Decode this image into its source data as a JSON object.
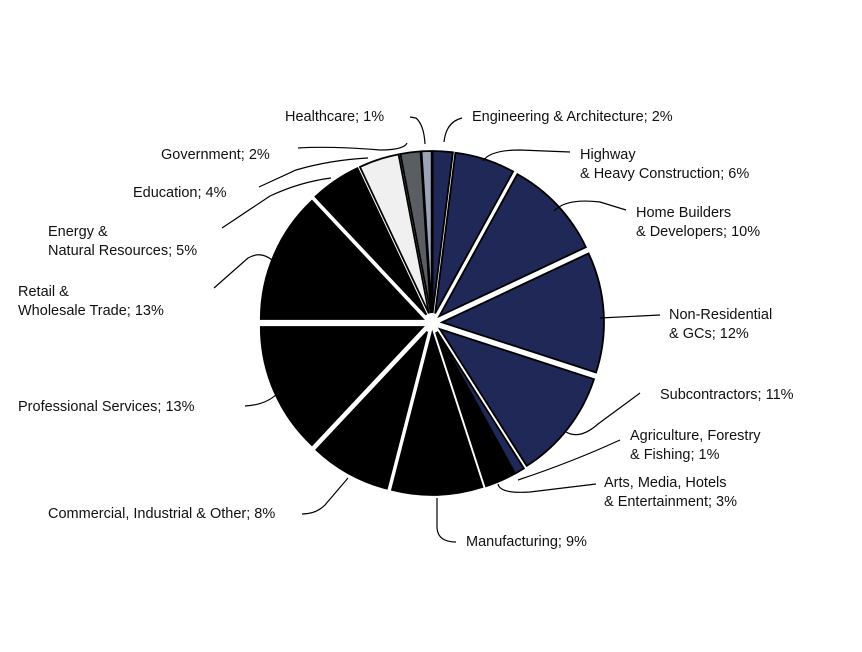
{
  "chart_data": {
    "type": "pie",
    "title": "",
    "legend": "none",
    "slices": [
      {
        "lines": [
          "Engineering & Architecture; 2%"
        ],
        "value": 2,
        "color": "#1f2857"
      },
      {
        "lines": [
          "Highway",
          "& Heavy Construction; 6%"
        ],
        "value": 6,
        "color": "#1f2857"
      },
      {
        "lines": [
          "Home Builders",
          "& Developers; 10%"
        ],
        "value": 10,
        "color": "#1f2857"
      },
      {
        "lines": [
          "Non-Residential",
          "& GCs; 12%"
        ],
        "value": 12,
        "color": "#1f2857"
      },
      {
        "lines": [
          "Subcontractors; 11%"
        ],
        "value": 11,
        "color": "#1f2857"
      },
      {
        "lines": [
          "Agriculture, Forestry",
          "& Fishing; 1%"
        ],
        "value": 1,
        "color": "#1f2857"
      },
      {
        "lines": [
          "Arts, Media, Hotels",
          "& Entertainment; 3%"
        ],
        "value": 3,
        "color": "#000000"
      },
      {
        "lines": [
          "Manufacturing; 9%"
        ],
        "value": 9,
        "color": "#000000"
      },
      {
        "lines": [
          "Commercial, Industrial & Other; 8%"
        ],
        "value": 8,
        "color": "#000000"
      },
      {
        "lines": [
          "Professional Services; 13%"
        ],
        "value": 13,
        "color": "#000000"
      },
      {
        "lines": [
          "Retail &",
          "Wholesale Trade; 13%"
        ],
        "value": 13,
        "color": "#000000"
      },
      {
        "lines": [
          "Energy &",
          "Natural Resources; 5%"
        ],
        "value": 5,
        "color": "#000000"
      },
      {
        "lines": [
          "Education; 4%"
        ],
        "value": 4,
        "color": "#f0f0f0"
      },
      {
        "lines": [
          "Government; 2%"
        ],
        "value": 2,
        "color": "#5a5d61"
      },
      {
        "lines": [
          "Healthcare; 1%"
        ],
        "value": 1,
        "color": "#9ba3b6"
      }
    ]
  }
}
